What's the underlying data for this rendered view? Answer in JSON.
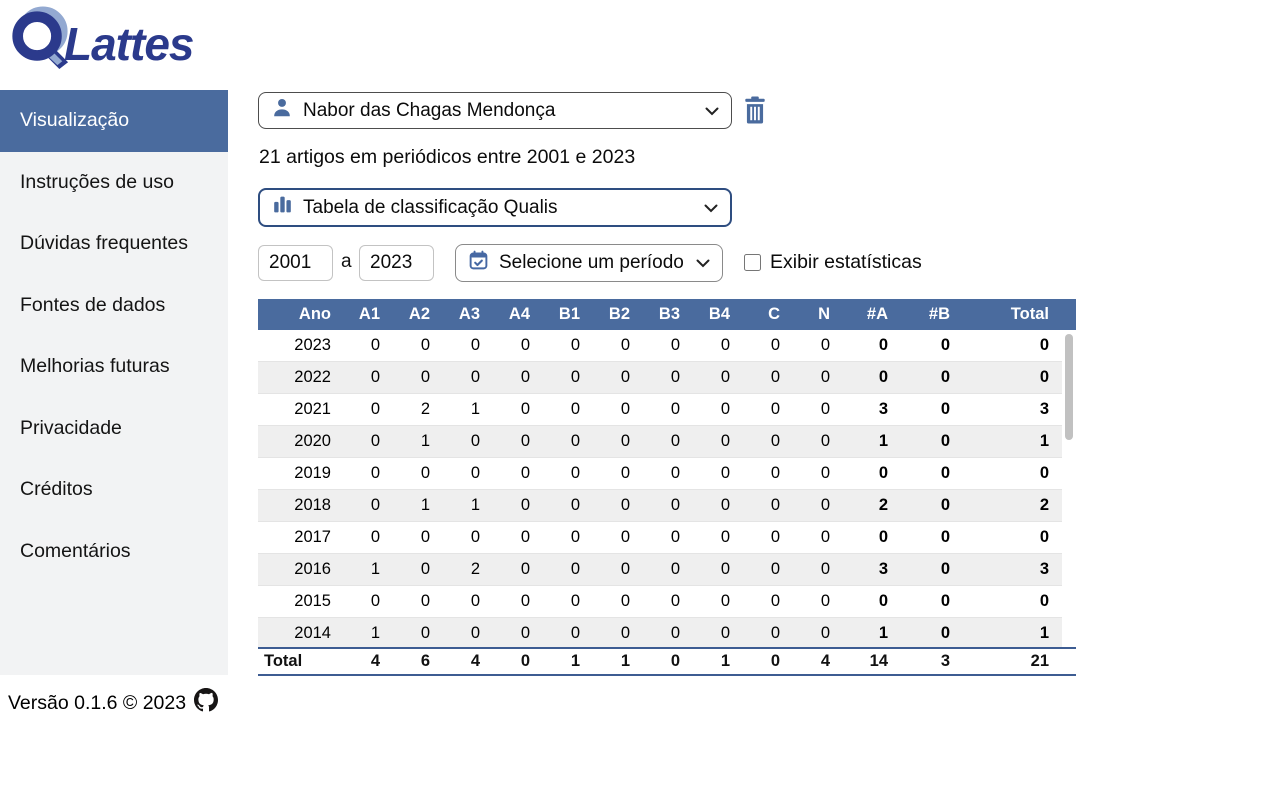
{
  "logo": {
    "brand": "Lattes"
  },
  "sidebar": {
    "items": [
      {
        "label": "Visualização",
        "active": true
      },
      {
        "label": "Instruções de uso",
        "active": false
      },
      {
        "label": "Dúvidas frequentes",
        "active": false
      },
      {
        "label": "Fontes de dados",
        "active": false
      },
      {
        "label": "Melhorias futuras",
        "active": false
      },
      {
        "label": "Privacidade",
        "active": false
      },
      {
        "label": "Créditos",
        "active": false
      },
      {
        "label": "Comentários",
        "active": false
      }
    ]
  },
  "main": {
    "cv_select": {
      "value": "Nabor das Chagas Mendonça",
      "icon": "person-icon"
    },
    "delete_button": {
      "icon": "trash-icon"
    },
    "summary": "21 artigos em periódicos entre 2001 e 2023",
    "view_select": {
      "value": "Tabela de classificação Qualis",
      "icon": "bar-chart-icon"
    },
    "year_from": "2001",
    "year_separator": "a",
    "year_to": "2023",
    "period_select": {
      "value": "Selecione um período",
      "icon": "calendar-icon"
    },
    "stats_checkbox": {
      "label": "Exibir estatísticas",
      "checked": false
    }
  },
  "table": {
    "columns": [
      "Ano",
      "A1",
      "A2",
      "A3",
      "A4",
      "B1",
      "B2",
      "B3",
      "B4",
      "C",
      "N",
      "#A",
      "#B",
      "Total"
    ],
    "rows": [
      {
        "year": "2023",
        "values": [
          0,
          0,
          0,
          0,
          0,
          0,
          0,
          0,
          0,
          0,
          0,
          0,
          0
        ]
      },
      {
        "year": "2022",
        "values": [
          0,
          0,
          0,
          0,
          0,
          0,
          0,
          0,
          0,
          0,
          0,
          0,
          0
        ]
      },
      {
        "year": "2021",
        "values": [
          0,
          2,
          1,
          0,
          0,
          0,
          0,
          0,
          0,
          0,
          3,
          0,
          3
        ]
      },
      {
        "year": "2020",
        "values": [
          0,
          1,
          0,
          0,
          0,
          0,
          0,
          0,
          0,
          0,
          1,
          0,
          1
        ]
      },
      {
        "year": "2019",
        "values": [
          0,
          0,
          0,
          0,
          0,
          0,
          0,
          0,
          0,
          0,
          0,
          0,
          0
        ]
      },
      {
        "year": "2018",
        "values": [
          0,
          1,
          1,
          0,
          0,
          0,
          0,
          0,
          0,
          0,
          2,
          0,
          2
        ]
      },
      {
        "year": "2017",
        "values": [
          0,
          0,
          0,
          0,
          0,
          0,
          0,
          0,
          0,
          0,
          0,
          0,
          0
        ]
      },
      {
        "year": "2016",
        "values": [
          1,
          0,
          2,
          0,
          0,
          0,
          0,
          0,
          0,
          0,
          3,
          0,
          3
        ]
      },
      {
        "year": "2015",
        "values": [
          0,
          0,
          0,
          0,
          0,
          0,
          0,
          0,
          0,
          0,
          0,
          0,
          0
        ]
      },
      {
        "year": "2014",
        "values": [
          1,
          0,
          0,
          0,
          0,
          0,
          0,
          0,
          0,
          0,
          1,
          0,
          1
        ]
      }
    ],
    "total": {
      "label": "Total",
      "values": [
        4,
        6,
        4,
        0,
        1,
        1,
        0,
        1,
        0,
        4,
        14,
        3,
        21
      ]
    }
  },
  "footer": {
    "version": "Versão 0.1.6 © 2023"
  },
  "colors": {
    "accent": "#4a6b9e",
    "accent_dark": "#2e4d80",
    "logo_blue": "#2b3a8c",
    "logo_light_blue": "#93a9d1",
    "row_stripe": "#efefef",
    "total_border": "#3d5c92"
  }
}
